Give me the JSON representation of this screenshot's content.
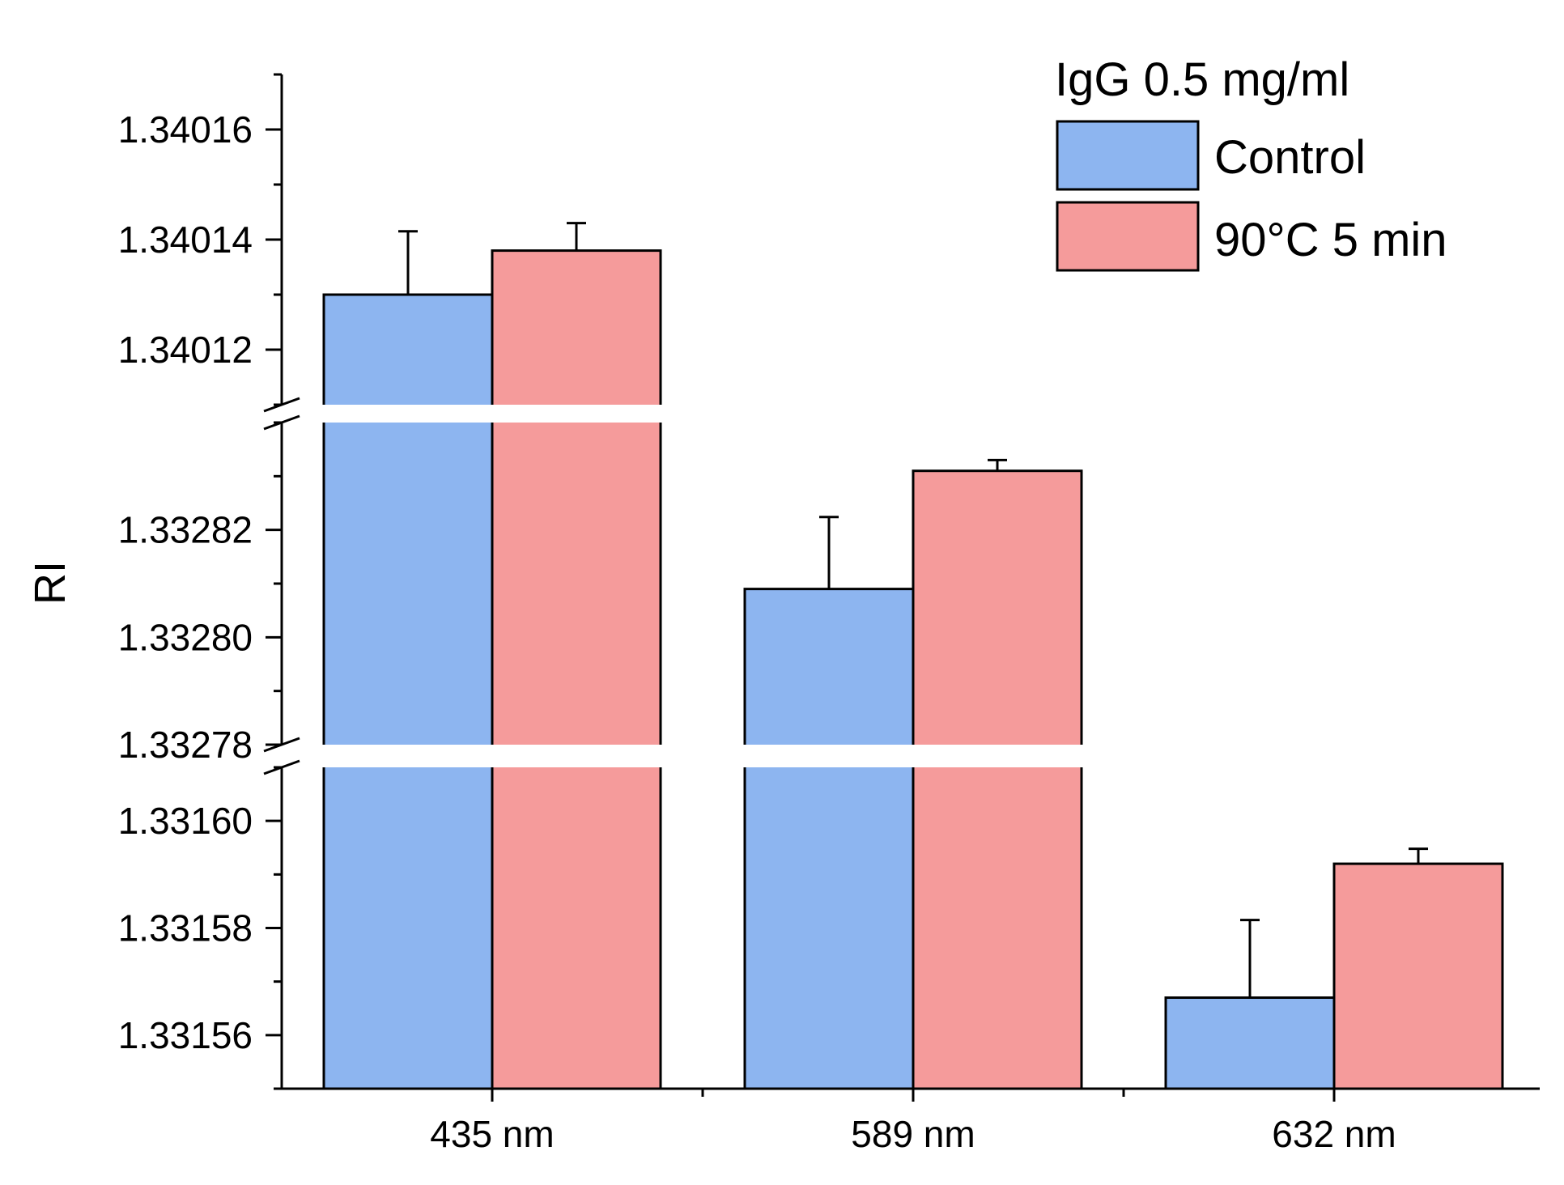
{
  "chart_data": {
    "type": "bar",
    "ylabel": "RI",
    "xlabel": "",
    "categories": [
      "435 nm",
      "589 nm",
      "632 nm"
    ],
    "series": [
      {
        "name": "Control",
        "color": "#8db5f0",
        "values": [
          1.34013,
          1.332809,
          1.331567
        ],
        "errors": [
          1.15e-05,
          1.34e-05,
          1.45e-05
        ]
      },
      {
        "name": "90°C 5 min",
        "color": "#f59b9b",
        "values": [
          1.340138,
          1.332831,
          1.331592
        ],
        "errors": [
          5e-06,
          2e-06,
          2.8e-06
        ]
      }
    ],
    "y_break_segments": [
      {
        "ylim": [
          1.33155,
          1.33161
        ],
        "ticks": [
          1.33156,
          1.33158,
          1.3316
        ],
        "tick_labels": [
          "1.33156",
          "1.33158",
          "1.33160"
        ]
      },
      {
        "ylim": [
          1.33278,
          1.33284
        ],
        "ticks": [
          1.33278,
          1.3328,
          1.33282
        ],
        "tick_labels": [
          "1.33278",
          "1.33280",
          "1.33282"
        ]
      },
      {
        "ylim": [
          1.34011,
          1.34017
        ],
        "ticks": [
          1.34012,
          1.34014,
          1.34016
        ],
        "tick_labels": [
          "1.34012",
          "1.34014",
          "1.34016"
        ]
      }
    ],
    "legend": {
      "title": "IgG 0.5 mg/ml",
      "position": "top-right"
    }
  }
}
